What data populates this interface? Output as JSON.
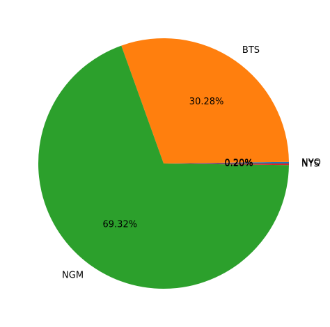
{
  "chart_data": {
    "type": "pie",
    "title": "",
    "categories": [
      "NYQ",
      "BTS",
      "NGM",
      "NYS"
    ],
    "values": [
      0.2,
      30.28,
      69.32,
      0.2
    ],
    "percent_labels": [
      "0.20%",
      "30.28%",
      "69.32%",
      "0.20%"
    ],
    "start_angle_deg": 0,
    "direction": "counterclockwise",
    "colors": [
      "#1f77b4",
      "#ff7f0e",
      "#2ca02c",
      "#d62728"
    ],
    "legend": "none"
  }
}
